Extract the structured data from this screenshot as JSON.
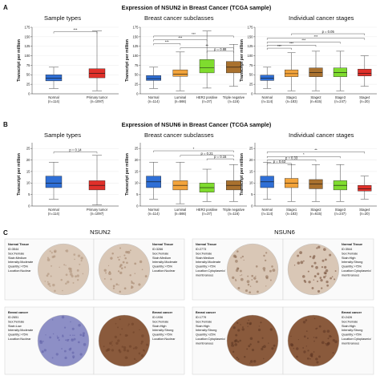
{
  "panels": [
    {
      "id": "A",
      "letter": "A",
      "title": "Expression of NSUN2 in Breast Cancer (TCGA sample)",
      "ylabel": "Transcript per million",
      "charts": [
        {
          "subtitle": "Sample types",
          "type": "box",
          "ylim": [
            0,
            175
          ],
          "yticks": [
            0,
            25,
            50,
            75,
            100,
            125,
            150,
            175
          ],
          "categories": [
            "Normal\n(n=114)",
            "Primary tumor\n(n=1097)"
          ],
          "colors": [
            "#2f6fd6",
            "#e0302a"
          ],
          "boxes": [
            {
              "min": 14,
              "q1": 34,
              "median": 41,
              "q3": 50,
              "max": 70
            },
            {
              "min": 8,
              "q1": 42,
              "median": 54,
              "q3": 66,
              "max": 165
            }
          ],
          "brackets": [
            {
              "from": 0,
              "to": 1,
              "y": 163,
              "label": "***"
            }
          ]
        },
        {
          "subtitle": "Breast cancer subclasses",
          "type": "box",
          "ylim": [
            0,
            175
          ],
          "yticks": [
            0,
            25,
            50,
            75,
            100,
            125,
            150,
            175
          ],
          "categories": [
            "Normal\n(n=114)",
            "Luminal\n(n=566)",
            "HER2 positive\n(n=37)",
            "Triple negative\n(n=116)"
          ],
          "colors": [
            "#2f6fd6",
            "#f2a33a",
            "#7fdc2e",
            "#a9712e"
          ],
          "boxes": [
            {
              "min": 14,
              "q1": 35,
              "median": 40,
              "q3": 48,
              "max": 70
            },
            {
              "min": 8,
              "q1": 46,
              "median": 52,
              "q3": 63,
              "max": 110
            },
            {
              "min": 15,
              "q1": 55,
              "median": 68,
              "q3": 90,
              "max": 165
            },
            {
              "min": 20,
              "q1": 55,
              "median": 70,
              "q3": 85,
              "max": 130
            }
          ],
          "brackets": [
            {
              "from": 0,
              "to": 1,
              "y": 132,
              "label": "***"
            },
            {
              "from": 0,
              "to": 2,
              "y": 142,
              "label": "***"
            },
            {
              "from": 0,
              "to": 3,
              "y": 152,
              "label": "***"
            },
            {
              "from": 1,
              "to": 3,
              "y": 121,
              "label": "**"
            },
            {
              "from": 2,
              "to": 3,
              "y": 112,
              "label": "p = 0.88"
            }
          ]
        },
        {
          "subtitle": "Individual cancer stages",
          "type": "box",
          "ylim": [
            0,
            175
          ],
          "yticks": [
            0,
            25,
            50,
            75,
            100,
            125,
            150,
            175
          ],
          "categories": [
            "Normal\n(n=114)",
            "Stage1\n(n=183)",
            "Stage2\n(n=615)",
            "Stage3\n(n=247)",
            "Stage4\n(n=20)"
          ],
          "colors": [
            "#2f6fd6",
            "#f2a33a",
            "#a9712e",
            "#7fdc2e",
            "#e0302a"
          ],
          "boxes": [
            {
              "min": 14,
              "q1": 35,
              "median": 41,
              "q3": 49,
              "max": 70
            },
            {
              "min": 8,
              "q1": 45,
              "median": 53,
              "q3": 63,
              "max": 108
            },
            {
              "min": 8,
              "q1": 45,
              "median": 56,
              "q3": 68,
              "max": 112
            },
            {
              "min": 8,
              "q1": 45,
              "median": 56,
              "q3": 68,
              "max": 112
            },
            {
              "min": 20,
              "q1": 47,
              "median": 54,
              "q3": 65,
              "max": 100
            }
          ],
          "brackets": [
            {
              "from": 0,
              "to": 1,
              "y": 120,
              "label": "***"
            },
            {
              "from": 0,
              "to": 2,
              "y": 128,
              "label": "***"
            },
            {
              "from": 0,
              "to": 3,
              "y": 136,
              "label": "***"
            },
            {
              "from": 0,
              "to": 4,
              "y": 146,
              "label": "***"
            },
            {
              "from": 1,
              "to": 4,
              "y": 158,
              "label": "p = 0.05"
            }
          ]
        }
      ]
    },
    {
      "id": "B",
      "letter": "B",
      "title": "Expression of NSUN6 in Breast Cancer (TCGA sample)",
      "ylabel": "Transcript per million",
      "charts": [
        {
          "subtitle": "Sample types",
          "type": "box",
          "ylim": [
            0,
            27.5
          ],
          "yticks": [
            0,
            5,
            10,
            15,
            20,
            25
          ],
          "categories": [
            "Normal\n(n=114)",
            "Primary tumor\n(n=1097)"
          ],
          "colors": [
            "#2f6fd6",
            "#e0302a"
          ],
          "boxes": [
            {
              "min": 3,
              "q1": 8,
              "median": 10,
              "q3": 13,
              "max": 19
            },
            {
              "min": 0.5,
              "q1": 7,
              "median": 9,
              "q3": 11,
              "max": 22
            }
          ],
          "brackets": [
            {
              "from": 0,
              "to": 1,
              "y": 23.5,
              "label": "p = 0.14"
            }
          ]
        },
        {
          "subtitle": "Breast cancer subclasses",
          "type": "box",
          "ylim": [
            0,
            27.5
          ],
          "yticks": [
            0,
            5,
            10,
            15,
            20,
            25
          ],
          "categories": [
            "Normal\n(n=114)",
            "Luminal\n(n=566)",
            "HER2 positive\n(n=37)",
            "Triple negative\n(n=116)"
          ],
          "colors": [
            "#2f6fd6",
            "#f2a33a",
            "#7fdc2e",
            "#a9712e"
          ],
          "boxes": [
            {
              "min": 3,
              "q1": 8,
              "median": 10.5,
              "q3": 13,
              "max": 19
            },
            {
              "min": 1,
              "q1": 7,
              "median": 9,
              "q3": 11,
              "max": 19
            },
            {
              "min": 2,
              "q1": 6,
              "median": 8,
              "q3": 10,
              "max": 16
            },
            {
              "min": 2,
              "q1": 7,
              "median": 9,
              "q3": 11,
              "max": 18
            }
          ],
          "brackets": [
            {
              "from": 0,
              "to": 3,
              "y": 24,
              "label": "*"
            },
            {
              "from": 1,
              "to": 3,
              "y": 22,
              "label": "p = 0.21"
            },
            {
              "from": 2,
              "to": 3,
              "y": 20.5,
              "label": "p = 0.15"
            }
          ]
        },
        {
          "subtitle": "Individual cancer stages",
          "type": "box",
          "ylim": [
            0,
            27.5
          ],
          "yticks": [
            0,
            5,
            10,
            15,
            20,
            25
          ],
          "categories": [
            "Normal\n(n=114)",
            "Stage1\n(n=183)",
            "Stage2\n(n=615)",
            "Stage3\n(n=247)",
            "Stage4\n(n=20)"
          ],
          "colors": [
            "#2f6fd6",
            "#f2a33a",
            "#a9712e",
            "#7fdc2e",
            "#e0302a"
          ],
          "boxes": [
            {
              "min": 3,
              "q1": 8,
              "median": 10.5,
              "q3": 13,
              "max": 19
            },
            {
              "min": 2,
              "q1": 8,
              "median": 10,
              "q3": 12,
              "max": 18
            },
            {
              "min": 2,
              "q1": 7.5,
              "median": 9.5,
              "q3": 11.5,
              "max": 18
            },
            {
              "min": 2,
              "q1": 7,
              "median": 9,
              "q3": 11,
              "max": 18
            },
            {
              "min": 3,
              "q1": 6.5,
              "median": 7.5,
              "q3": 9,
              "max": 13
            }
          ],
          "brackets": [
            {
              "from": 0,
              "to": 1,
              "y": 18.5,
              "label": "p = 0.63"
            },
            {
              "from": 0,
              "to": 2,
              "y": 20,
              "label": "p = 0.33"
            },
            {
              "from": 0,
              "to": 3,
              "y": 21.5,
              "label": "*"
            },
            {
              "from": 0,
              "to": 4,
              "y": 23.5,
              "label": "**"
            }
          ]
        }
      ]
    }
  ],
  "ihc": {
    "letter": "C",
    "left_title": "NSUN2",
    "right_title": "NSUN6",
    "normal_stain_color": "#d9c7b6",
    "cancer_stain_color": "#8a5a3c",
    "blue_stain_color": "#8d8fc6",
    "cells": [
      {
        "heading": "Normal Tissue",
        "lines": [
          "ID:3544",
          "Sex:Female",
          "Stain:Medium",
          "Intensity:Moderate",
          "Quantity:>75%",
          "Location:Nuclear"
        ]
      },
      {
        "heading": "Normal Tissue",
        "lines": [
          "ID:3266",
          "Sex:Female",
          "Stain:Medium",
          "Intensity:Moderate",
          "Quantity:>75%",
          "Location:Nuclear"
        ]
      },
      {
        "heading": "Normal Tissue",
        "lines": [
          "ID:2773",
          "Sex:Female",
          "Stain:Medium",
          "Intensity:Moderate",
          "Quantity:>75%",
          "Location:Cytoplasmic/",
          "membranous"
        ]
      },
      {
        "heading": "Normal Tissue",
        "lines": [
          "ID:3544",
          "Sex:Female",
          "Stain:High",
          "Intensity:Strong",
          "Quantity:>75%",
          "Location:Cytoplasmic/",
          "membranous"
        ]
      },
      {
        "heading": "Breast cancer",
        "lines": [
          "ID:2651",
          "Sex:Female",
          "Stain:Low",
          "Intensity:Moderate",
          "Quantity:>75%",
          "Location:Nuclear"
        ]
      },
      {
        "heading": "Breast cancer",
        "lines": [
          "ID:1936",
          "Sex:Female",
          "Stain:High",
          "Intensity:Strong",
          "Quantity:>75%",
          "Location:Nuclear"
        ]
      },
      {
        "heading": "Breast cancer",
        "lines": [
          "ID:1779",
          "Sex:Female",
          "Stain:High",
          "Intensity:Strong",
          "Quantity:>25%",
          "Location:Cytoplasmic/",
          "membranous"
        ]
      },
      {
        "heading": "Breast cancer",
        "lines": [
          "ID:2426",
          "Sex:Female",
          "Stain:High",
          "Intensity:Strong",
          "Quantity:>75%",
          "Location:Cytoplasmic/",
          "membranous"
        ]
      }
    ]
  }
}
